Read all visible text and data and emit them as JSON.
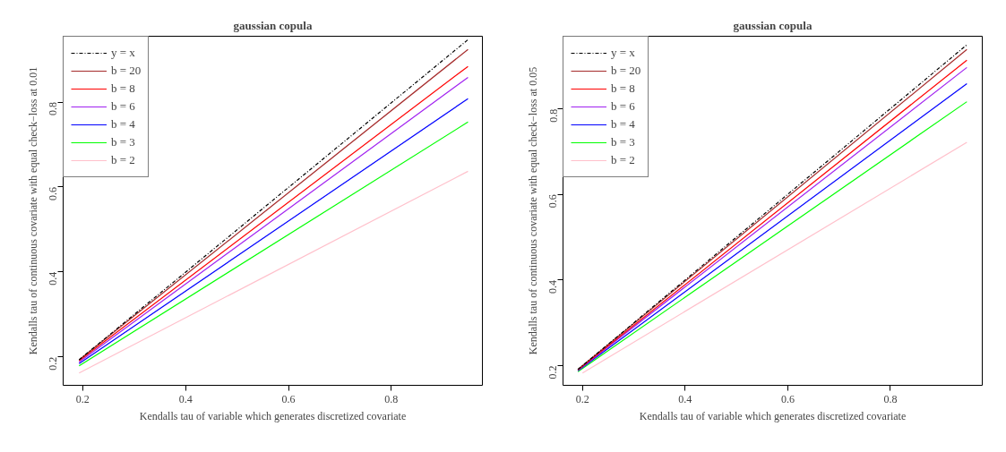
{
  "chart_data": [
    {
      "type": "line",
      "title": "gaussian copula",
      "xlabel": "Kendalls tau of variable which generates discretized covariate",
      "ylabel": "Kendalls tau of continuous covariate with equal check−loss at 0.01",
      "xlim": [
        0.162,
        0.977
      ],
      "ylim": [
        0.133,
        0.955
      ],
      "xticks": [
        0.2,
        0.4,
        0.6,
        0.8
      ],
      "yticks": [
        0.2,
        0.4,
        0.6,
        0.8
      ],
      "grid": false,
      "legend": "top left",
      "series": [
        {
          "name": "y = x",
          "color": "#000000",
          "line_style": "dotdash",
          "x": [
            0.193,
            0.949
          ],
          "values": [
            0.193,
            0.947
          ]
        },
        {
          "name": "b = 20",
          "color": "#a52a2a",
          "x": [
            0.193,
            0.949
          ],
          "values": [
            0.193,
            0.924
          ]
        },
        {
          "name": "b = 8",
          "color": "#ff0000",
          "x": [
            0.193,
            0.949
          ],
          "values": [
            0.191,
            0.884
          ]
        },
        {
          "name": "b = 6",
          "color": "#a020f0",
          "x": [
            0.193,
            0.949
          ],
          "values": [
            0.188,
            0.858
          ]
        },
        {
          "name": "b = 4",
          "color": "#0000ff",
          "x": [
            0.193,
            0.949
          ],
          "values": [
            0.184,
            0.808
          ]
        },
        {
          "name": "b = 3",
          "color": "#00ff00",
          "x": [
            0.193,
            0.949
          ],
          "values": [
            0.179,
            0.753
          ]
        },
        {
          "name": "b = 2",
          "color": "#ffc0cb",
          "x": [
            0.193,
            0.949
          ],
          "values": [
            0.162,
            0.637
          ]
        }
      ]
    },
    {
      "type": "line",
      "title": "gaussian copula",
      "xlabel": "Kendalls tau of variable which generates discretized covariate",
      "ylabel": "Kendalls tau of continuous covariate with equal check−loss at 0.05",
      "xlim": [
        0.162,
        0.979
      ],
      "ylim": [
        0.154,
        0.97
      ],
      "xticks": [
        0.2,
        0.4,
        0.6,
        0.8
      ],
      "yticks": [
        0.2,
        0.4,
        0.6,
        0.8
      ],
      "grid": false,
      "legend": "top left",
      "series": [
        {
          "name": "y = x",
          "color": "#000000",
          "line_style": "dotdash",
          "x": [
            0.191,
            0.949
          ],
          "values": [
            0.191,
            0.95
          ]
        },
        {
          "name": "b = 20",
          "color": "#a52a2a",
          "x": [
            0.191,
            0.949
          ],
          "values": [
            0.191,
            0.939
          ]
        },
        {
          "name": "b = 8",
          "color": "#ff0000",
          "x": [
            0.191,
            0.949
          ],
          "values": [
            0.19,
            0.914
          ]
        },
        {
          "name": "b = 6",
          "color": "#a020f0",
          "x": [
            0.191,
            0.949
          ],
          "values": [
            0.189,
            0.897
          ]
        },
        {
          "name": "b = 4",
          "color": "#0000ff",
          "x": [
            0.191,
            0.949
          ],
          "values": [
            0.188,
            0.859
          ]
        },
        {
          "name": "b = 3",
          "color": "#00ff00",
          "x": [
            0.191,
            0.949
          ],
          "values": [
            0.186,
            0.817
          ]
        },
        {
          "name": "b = 2",
          "color": "#ffc0cb",
          "x": [
            0.2,
            0.949
          ],
          "values": [
            0.183,
            0.722
          ]
        }
      ]
    }
  ]
}
